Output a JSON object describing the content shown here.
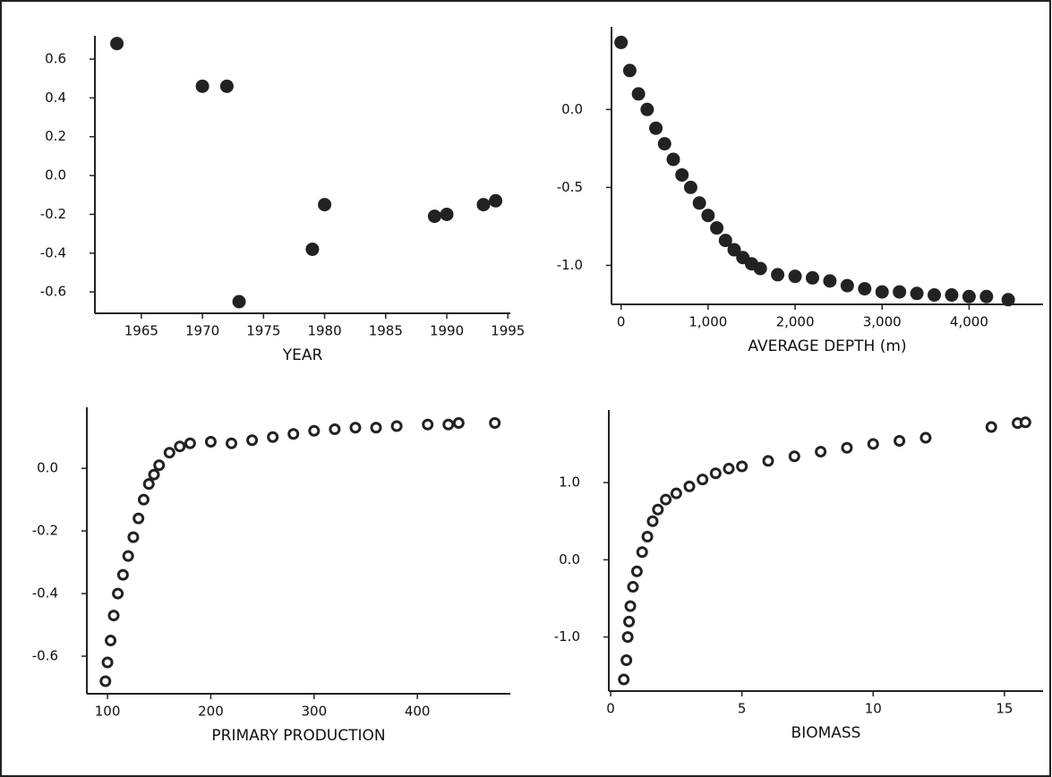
{
  "chart_data": [
    {
      "type": "scatter",
      "x_label": "YEAR",
      "marker": "filled",
      "color": "#222",
      "x": [
        1963,
        1970,
        1972,
        1973,
        1979,
        1980,
        1989,
        1990,
        1993,
        1994
      ],
      "values": [
        0.68,
        0.46,
        0.46,
        -0.65,
        -0.38,
        -0.15,
        -0.21,
        -0.2,
        -0.15,
        -0.13
      ],
      "xlim": [
        1961.2,
        1995.2
      ],
      "ylim": [
        -0.71,
        0.72
      ],
      "xticks": [
        1965,
        1970,
        1975,
        1980,
        1985,
        1990,
        1995
      ],
      "yticks": [
        0.6,
        0.4,
        0.2,
        {
          "value": 0,
          "label": "0.0"
        },
        -0.2,
        -0.4,
        -0.6
      ]
    },
    {
      "type": "scatter",
      "x_label": "AVERAGE DEPTH (m)",
      "marker": "filled",
      "color": "#222",
      "x": [
        0,
        100,
        200,
        300,
        400,
        500,
        600,
        700,
        800,
        900,
        1000,
        1100,
        1200,
        1300,
        1400,
        1500,
        1600,
        1800,
        2000,
        2200,
        2400,
        2600,
        2800,
        3000,
        3200,
        3400,
        3600,
        3800,
        4000,
        4200,
        4450
      ],
      "values": [
        0.43,
        0.25,
        0.1,
        0.0,
        -0.12,
        -0.22,
        -0.32,
        -0.42,
        -0.5,
        -0.6,
        -0.68,
        -0.76,
        -0.84,
        -0.9,
        -0.95,
        -0.99,
        -1.02,
        -1.06,
        -1.07,
        -1.08,
        -1.1,
        -1.13,
        -1.15,
        -1.17,
        -1.17,
        -1.18,
        -1.19,
        -1.19,
        -1.2,
        -1.2,
        -1.22
      ],
      "xlim": [
        -110,
        4850
      ],
      "ylim": [
        -1.25,
        0.53
      ],
      "xticks": [
        0,
        {
          "value": 1000,
          "label": "1,000"
        },
        {
          "value": 2000,
          "label": "2,000"
        },
        {
          "value": 3000,
          "label": "3,000"
        },
        {
          "value": 4000,
          "label": "4,000"
        }
      ],
      "yticks": [
        {
          "value": 0,
          "label": "0.0"
        },
        -0.5,
        {
          "value": -1,
          "label": "-1.0"
        }
      ]
    },
    {
      "type": "scatter",
      "x_label": "PRIMARY PRODUCTION",
      "marker": "open",
      "color": "#222",
      "x": [
        98,
        100,
        103,
        106,
        110,
        115,
        120,
        125,
        130,
        135,
        140,
        145,
        150,
        160,
        170,
        180,
        200,
        220,
        240,
        260,
        280,
        300,
        320,
        340,
        360,
        380,
        410,
        430,
        440,
        475
      ],
      "values": [
        -0.68,
        -0.62,
        -0.55,
        -0.47,
        -0.4,
        -0.34,
        -0.28,
        -0.22,
        -0.16,
        -0.1,
        -0.05,
        -0.02,
        0.01,
        0.05,
        0.07,
        0.08,
        0.085,
        0.08,
        0.09,
        0.1,
        0.11,
        0.12,
        0.125,
        0.13,
        0.13,
        0.135,
        0.14,
        0.14,
        0.145,
        0.145
      ],
      "xlim": [
        80,
        490
      ],
      "ylim": [
        -0.72,
        0.195
      ],
      "xticks": [
        100,
        200,
        300,
        400
      ],
      "yticks": [
        {
          "value": 0,
          "label": "0.0"
        },
        -0.2,
        -0.4,
        -0.6
      ]
    },
    {
      "type": "scatter",
      "x_label": "BIOMASS",
      "marker": "open",
      "color": "#222",
      "x": [
        0.5,
        0.6,
        0.65,
        0.7,
        0.75,
        0.85,
        1.0,
        1.2,
        1.4,
        1.6,
        1.8,
        2.1,
        2.5,
        3,
        3.5,
        4,
        4.5,
        5,
        6,
        7,
        8,
        9,
        10,
        11,
        12,
        14.5,
        15.5,
        15.8
      ],
      "values": [
        -1.55,
        -1.3,
        -1.0,
        -0.8,
        -0.6,
        -0.35,
        -0.15,
        0.1,
        0.3,
        0.5,
        0.65,
        0.78,
        0.86,
        0.95,
        1.04,
        1.12,
        1.18,
        1.21,
        1.28,
        1.34,
        1.4,
        1.45,
        1.5,
        1.54,
        1.58,
        1.72,
        1.77,
        1.78
      ],
      "xlim": [
        -0.07,
        16.47
      ],
      "ylim": [
        -1.7,
        1.94
      ],
      "xticks": [
        0,
        5,
        10,
        15
      ],
      "yticks": [
        {
          "value": 1,
          "label": "1.0"
        },
        {
          "value": 0,
          "label": "0.0"
        },
        {
          "value": -1,
          "label": "-1.0"
        }
      ]
    }
  ]
}
